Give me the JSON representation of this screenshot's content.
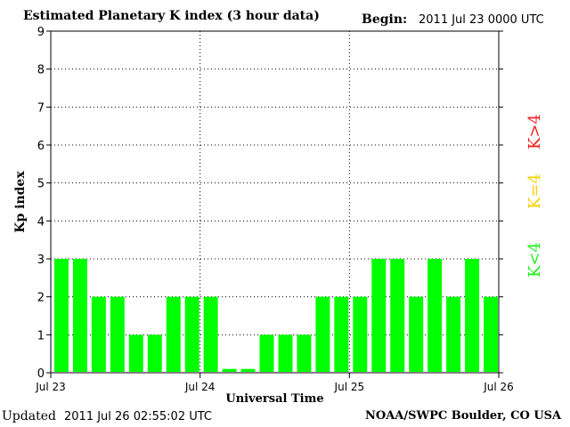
{
  "header": {
    "title": "Estimated Planetary K index (3 hour data)",
    "begin_label": "Begin:",
    "begin_value": "2011 Jul 23 0000 UTC"
  },
  "footer": {
    "updated_label": "Updated",
    "updated_value": "2011 Jul 26 02:55:02 UTC",
    "credit": "NOAA/SWPC Boulder, CO USA"
  },
  "legend": [
    {
      "label": "K<4",
      "color": "#22ee22"
    },
    {
      "label": "K=4",
      "color": "#f5d000"
    },
    {
      "label": "K>4",
      "color": "#ee2222"
    }
  ],
  "chart_data": {
    "type": "bar",
    "title": "Estimated Planetary K index (3 hour data)",
    "xlabel": "Universal Time",
    "ylabel": "Kp index",
    "ylim": [
      0,
      9
    ],
    "yticks": [
      "0",
      "1",
      "2",
      "3",
      "4",
      "5",
      "6",
      "7",
      "8",
      "9"
    ],
    "xticks": [
      "Jul 23",
      "Jul 24",
      "Jul 25",
      "Jul 26"
    ],
    "grid": true,
    "bar_color": "#00ff00",
    "values": [
      3,
      3,
      2,
      2,
      1,
      1,
      2,
      2,
      2,
      0.1,
      0.1,
      1,
      1,
      1,
      2,
      2,
      2,
      3,
      3,
      2,
      3,
      2,
      3,
      2
    ]
  }
}
